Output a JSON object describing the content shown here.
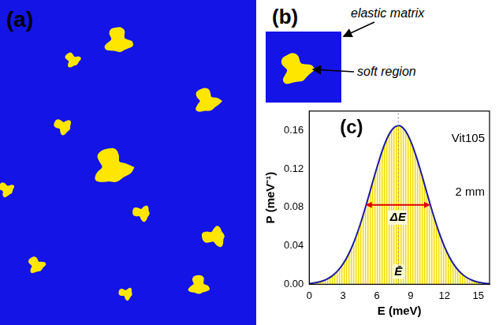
{
  "panel_a": {
    "label": "(a)"
  },
  "panel_b": {
    "label": "(b)",
    "matrix_label": "elastic matrix",
    "soft_label": "soft region"
  },
  "chart_data": {
    "type": "line",
    "panel_label": "(c)",
    "x_label": "E (meV)",
    "y_label": "P (meV⁻¹)",
    "x": [
      0,
      0.5,
      1,
      1.5,
      2,
      2.5,
      3,
      3.5,
      4,
      4.5,
      5,
      5.5,
      6,
      6.5,
      7,
      7.5,
      8,
      8.5,
      9,
      9.5,
      10,
      10.5,
      11,
      11.5,
      12,
      12.5,
      13,
      13.5,
      14,
      14.5,
      15,
      15.5,
      16
    ],
    "values": [
      0.0008,
      0.0015,
      0.0028,
      0.005,
      0.0084,
      0.0137,
      0.0212,
      0.0315,
      0.045,
      0.0614,
      0.0804,
      0.1009,
      0.1212,
      0.1396,
      0.154,
      0.1627,
      0.1649,
      0.16,
      0.1488,
      0.1326,
      0.1132,
      0.0926,
      0.0726,
      0.0545,
      0.0392,
      0.027,
      0.0179,
      0.0113,
      0.0069,
      0.004,
      0.0022,
      0.0012,
      0.0006
    ],
    "color": "#1c1ca0",
    "xlim": [
      0,
      16
    ],
    "xticks": [
      0,
      3,
      6,
      9,
      12,
      15
    ],
    "ylim": [
      0,
      0.18
    ],
    "yticks": [
      {
        "value": 0,
        "label": "0.00"
      },
      {
        "value": 0.04,
        "label": "0.04"
      },
      {
        "value": 0.08,
        "label": "0.08"
      },
      {
        "value": 0.12,
        "label": "0.12"
      },
      {
        "value": 0.16,
        "label": "0.16"
      }
    ],
    "grid": false,
    "mean": 7.9,
    "fwhm": {
      "from": 5.0,
      "to": 10.75,
      "y": 0.0825
    },
    "annotations": {
      "material": "Vit105",
      "size": "2 mm",
      "width_label": "ΔE",
      "mean_label": "Ē"
    }
  }
}
